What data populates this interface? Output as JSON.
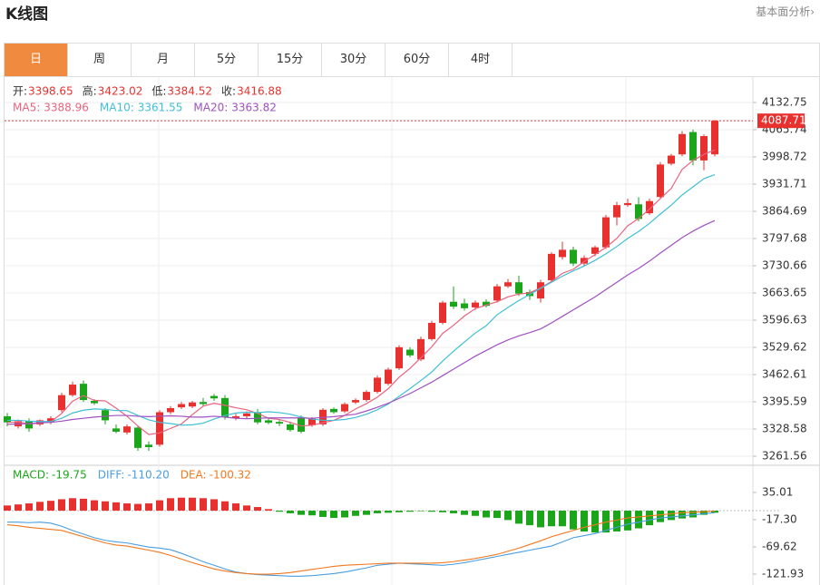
{
  "header": {
    "title": "K线图",
    "link": "基本面分析›"
  },
  "tabs": [
    "日",
    "周",
    "月",
    "5分",
    "15分",
    "30分",
    "60分",
    "4时"
  ],
  "active_tab": 0,
  "chart_data": [
    {
      "type": "candlestick",
      "up_color": "#e8312f",
      "down_color": "#1aa51a",
      "grid": true,
      "readout": [
        {
          "label": "开:",
          "value": 3398.65
        },
        {
          "label": "高:",
          "value": 3423.02
        },
        {
          "label": "低:",
          "value": 3384.52
        },
        {
          "label": "收:",
          "value": 3416.88
        }
      ],
      "ylim": [
        3241.5,
        4188.6
      ],
      "yticks": [
        4132.75,
        4065.74,
        3998.72,
        3931.71,
        3864.69,
        3797.68,
        3730.66,
        3663.65,
        3596.63,
        3529.62,
        3462.61,
        3395.59,
        3328.58,
        3261.56
      ],
      "last_price": 4087.71,
      "open": [
        3360,
        3335,
        3348,
        3340,
        3345,
        3375,
        3412,
        3440,
        3398,
        3375,
        3330,
        3320,
        3332,
        3290,
        3290,
        3370,
        3382,
        3384,
        3395,
        3410,
        3405,
        3355,
        3360,
        3368,
        3350,
        3346,
        3340,
        3356,
        3338,
        3340,
        3378,
        3372,
        3394,
        3400,
        3420,
        3440,
        3478,
        3524,
        3500,
        3550,
        3590,
        3642,
        3638,
        3628,
        3642,
        3645,
        3680,
        3690,
        3666,
        3650,
        3695,
        3752,
        3770,
        3736,
        3760,
        3776,
        3850,
        3880,
        3882,
        3860,
        3900,
        3982,
        4005,
        4060,
        3990,
        4005
      ],
      "high": [
        3368,
        3352,
        3355,
        3352,
        3360,
        3418,
        3445,
        3448,
        3402,
        3380,
        3340,
        3340,
        3336,
        3298,
        3375,
        3385,
        3395,
        3398,
        3405,
        3415,
        3412,
        3366,
        3372,
        3378,
        3356,
        3352,
        3346,
        3362,
        3358,
        3380,
        3382,
        3394,
        3404,
        3424,
        3460,
        3480,
        3535,
        3530,
        3556,
        3595,
        3644,
        3680,
        3650,
        3645,
        3648,
        3686,
        3698,
        3706,
        3672,
        3696,
        3764,
        3790,
        3778,
        3756,
        3780,
        3856,
        3888,
        3896,
        3900,
        3896,
        3986,
        4006,
        4062,
        4066,
        4054,
        4090
      ],
      "low": [
        3335,
        3330,
        3322,
        3336,
        3340,
        3370,
        3408,
        3395,
        3388,
        3340,
        3318,
        3315,
        3275,
        3275,
        3285,
        3365,
        3378,
        3380,
        3385,
        3398,
        3352,
        3350,
        3355,
        3340,
        3340,
        3336,
        3322,
        3318,
        3334,
        3336,
        3366,
        3368,
        3390,
        3396,
        3416,
        3436,
        3474,
        3505,
        3496,
        3546,
        3586,
        3624,
        3620,
        3622,
        3628,
        3640,
        3676,
        3656,
        3646,
        3640,
        3690,
        3746,
        3730,
        3730,
        3754,
        3772,
        3830,
        3876,
        3840,
        3856,
        3896,
        3978,
        4000,
        3978,
        3966,
        4000
      ],
      "close": [
        3345,
        3348,
        3330,
        3350,
        3355,
        3412,
        3438,
        3400,
        3392,
        3350,
        3322,
        3335,
        3282,
        3284,
        3370,
        3380,
        3390,
        3394,
        3390,
        3404,
        3358,
        3360,
        3367,
        3345,
        3344,
        3342,
        3326,
        3322,
        3354,
        3376,
        3370,
        3390,
        3400,
        3420,
        3455,
        3475,
        3530,
        3510,
        3550,
        3590,
        3640,
        3630,
        3626,
        3640,
        3632,
        3680,
        3690,
        3662,
        3656,
        3690,
        3760,
        3770,
        3736,
        3750,
        3776,
        3850,
        3880,
        3885,
        3846,
        3890,
        3980,
        4002,
        4055,
        3990,
        4050,
        4087.71
      ],
      "series": [
        {
          "name": "MA5:",
          "legend_value": 3388.96,
          "color": "#e8637e",
          "values": [
            3345,
            3346,
            3341,
            3343,
            3346,
            3367,
            3397,
            3411,
            3399,
            3398,
            3380,
            3360,
            3336,
            3315,
            3319,
            3330,
            3341,
            3364,
            3385,
            3392,
            3387,
            3381,
            3376,
            3367,
            3355,
            3352,
            3345,
            3336,
            3338,
            3344,
            3350,
            3362,
            3378,
            3391,
            3407,
            3428,
            3456,
            3478,
            3504,
            3531,
            3564,
            3584,
            3607,
            3625,
            3634,
            3642,
            3654,
            3661,
            3664,
            3676,
            3692,
            3712,
            3722,
            3741,
            3758,
            3776,
            3798,
            3829,
            3847,
            3870,
            3896,
            3921,
            3968,
            3990,
            4005,
            4016
          ]
        },
        {
          "name": "MA10:",
          "legend_value": 3361.55,
          "color": "#3fbfd6",
          "values": [
            3350,
            3350,
            3348,
            3347,
            3347,
            3355,
            3368,
            3375,
            3378,
            3377,
            3374,
            3374,
            3362,
            3351,
            3345,
            3342,
            3338,
            3339,
            3343,
            3353,
            3362,
            3368,
            3370,
            3369,
            3371,
            3369,
            3365,
            3358,
            3353,
            3350,
            3350,
            3352,
            3357,
            3365,
            3376,
            3390,
            3409,
            3428,
            3448,
            3469,
            3496,
            3520,
            3543,
            3565,
            3583,
            3610,
            3628,
            3645,
            3660,
            3675,
            3690,
            3705,
            3718,
            3730,
            3744,
            3760,
            3778,
            3798,
            3815,
            3835,
            3858,
            3880,
            3905,
            3925,
            3945,
            3955
          ]
        },
        {
          "name": "MA20:",
          "legend_value": 3363.82,
          "color": "#a050c0",
          "values": [
            3340,
            3341,
            3342,
            3344,
            3345,
            3348,
            3352,
            3355,
            3358,
            3360,
            3362,
            3362,
            3360,
            3359,
            3360,
            3361,
            3360,
            3358,
            3358,
            3360,
            3358,
            3355,
            3354,
            3355,
            3356,
            3356,
            3356,
            3356,
            3355,
            3357,
            3359,
            3362,
            3365,
            3373,
            3382,
            3392,
            3404,
            3416,
            3430,
            3444,
            3460,
            3476,
            3492,
            3508,
            3522,
            3536,
            3548,
            3558,
            3566,
            3575,
            3590,
            3606,
            3622,
            3638,
            3654,
            3672,
            3690,
            3708,
            3724,
            3742,
            3762,
            3781,
            3800,
            3816,
            3830,
            3842
          ]
        }
      ]
    },
    {
      "type": "macd",
      "up_color": "#e8312f",
      "down_color": "#1aa51a",
      "ylim": [
        -142.9,
        83.8
      ],
      "yticks": [
        35.01,
        {
          "value": -17.3,
          "label": "-17.30"
        },
        -69.62,
        -121.93
      ],
      "histogram": {
        "name": "MACD:",
        "legend_value": -19.75,
        "color": "#1aa51a",
        "values": [
          10,
          12,
          14,
          17,
          19,
          22,
          24,
          23,
          20,
          18,
          16,
          14,
          13,
          14,
          20,
          24,
          25,
          25,
          24,
          22,
          18,
          14,
          10,
          7,
          3,
          -2,
          -5,
          -8,
          -9,
          -12,
          -14,
          -13,
          -10,
          -8,
          -5,
          -4,
          -3,
          -2,
          -1,
          -2,
          -3,
          -5,
          -8,
          -10,
          -13,
          -14,
          -18,
          -25,
          -28,
          -32,
          -30,
          -30,
          -36,
          -40,
          -42,
          -42,
          -40,
          -38,
          -34,
          -28,
          -22,
          -18,
          -15,
          -13,
          -8,
          -4
        ]
      },
      "series": [
        {
          "name": "DIFF:",
          "legend_value": {
            "value": -110.2,
            "label": "-110.20"
          },
          "color": "#4a9ee0",
          "values": [
            -22,
            -22,
            -23,
            -22,
            -24,
            -30,
            -38,
            -45,
            -52,
            -57,
            -60,
            -62,
            -66,
            -70,
            -72,
            -75,
            -82,
            -90,
            -98,
            -105,
            -112,
            -118,
            -121,
            -123,
            -124,
            -125,
            -126,
            -126,
            -125,
            -123,
            -121,
            -118,
            -114,
            -110,
            -105,
            -103,
            -101,
            -102,
            -103,
            -104,
            -105,
            -103,
            -100,
            -96,
            -92,
            -88,
            -84,
            -80,
            -76,
            -72,
            -68,
            -60,
            -52,
            -48,
            -44,
            -38,
            -32,
            -26,
            -22,
            -18,
            -14,
            -12,
            -10,
            -8,
            -6,
            -4
          ]
        },
        {
          "name": "DEA:",
          "legend_value": -100.32,
          "color": "#f07820",
          "values": [
            -27,
            -29,
            -32,
            -34,
            -36,
            -38,
            -44,
            -50,
            -56,
            -62,
            -66,
            -68,
            -72,
            -76,
            -80,
            -86,
            -93,
            -100,
            -106,
            -112,
            -116,
            -119,
            -121,
            -122,
            -122,
            -121,
            -119,
            -116,
            -113,
            -110,
            -107,
            -105,
            -104,
            -103,
            -102,
            -101,
            -101,
            -101,
            -101,
            -101,
            -100,
            -98,
            -95,
            -92,
            -88,
            -84,
            -78,
            -72,
            -65,
            -58,
            -50,
            -44,
            -38,
            -32,
            -27,
            -22,
            -18,
            -14,
            -12,
            -10,
            -8,
            -6,
            -4,
            -3,
            -2,
            -1
          ]
        }
      ]
    }
  ]
}
